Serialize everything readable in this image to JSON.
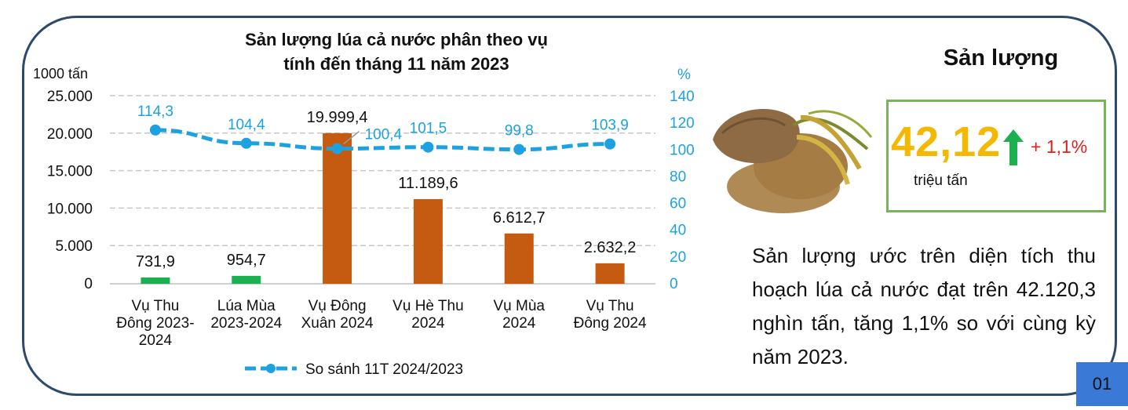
{
  "chart_data": {
    "type": "bar",
    "title": "Sản lượng lúa cả nước phân theo vụ tính đến tháng 11 năm 2023",
    "title_lines": [
      "Sản lượng lúa cả nước phân theo vụ",
      "tính đến tháng 11 năm 2023"
    ],
    "y_left_unit": "1000 tấn",
    "y_right_unit": "%",
    "y_left_range": [
      0,
      25000
    ],
    "y_left_ticks": [
      "25.000",
      "20.000",
      "15.000",
      "10.000",
      "5.000",
      "0"
    ],
    "y_right_range": [
      0,
      140
    ],
    "y_right_ticks": [
      "140",
      "120",
      "100",
      "80",
      "60",
      "40",
      "20",
      "0"
    ],
    "grid": "horizontal dashed",
    "categories": [
      [
        "Vụ Thu",
        "Đông 2023-",
        "2024"
      ],
      [
        "Lúa Mùa",
        "2023-2024"
      ],
      [
        "Vụ Đông",
        "Xuân 2024"
      ],
      [
        "Vụ Hè Thu",
        "2024"
      ],
      [
        "Vụ Mùa",
        "2024"
      ],
      [
        "Vụ Thu",
        "Đông 2024"
      ]
    ],
    "bars": {
      "values": [
        731.9,
        954.7,
        19999.4,
        11189.6,
        6612.7,
        2632.2
      ],
      "labels": [
        "731,9",
        "954,7",
        "19.999,4",
        "11.189,6",
        "6.612,7",
        "2.632,2"
      ],
      "colors": [
        "#1DB050",
        "#1DB050",
        "#C55A11",
        "#C55A11",
        "#C55A11",
        "#C55A11"
      ]
    },
    "line": {
      "name": "So sánh 11T 2024/2023",
      "values": [
        114.3,
        104.4,
        100.4,
        101.5,
        99.8,
        103.9
      ],
      "labels": [
        "114,3",
        "104,4",
        "100,4",
        "101,5",
        "99,8",
        "103,9"
      ],
      "color": "#1CA2E1",
      "axis": "right"
    },
    "legend": "bottom"
  },
  "panel": {
    "title": "Sản lượng",
    "kpi_value": "42,12",
    "kpi_unit": "triệu tấn",
    "kpi_change": "+ 1,1%",
    "kpi_value_color": "#F5B800",
    "arrow_color": "#1DB050",
    "description": "Sản lượng ước trên diện tích thu hoạch lúa cả nước đạt trên 42.120,3 nghìn tấn, tăng 1,1% so với cùng kỳ năm 2023."
  },
  "page_number": "01"
}
